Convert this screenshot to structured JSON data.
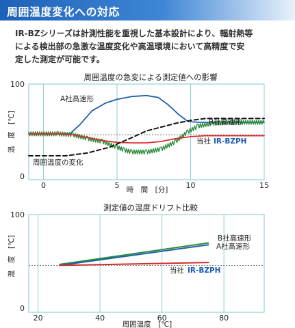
{
  "header": {
    "title": "周囲温度変化への対応"
  },
  "intro": {
    "lines": [
      "IR-BZシリーズは計測性能を重視した基本設計により、輻射熱等",
      "による検出部の急激な温度変化や高温環境において高精度で安",
      "定した測定が可能です。"
    ]
  },
  "colors": {
    "blue": "#1f5fa8",
    "green": "#2c8a3e",
    "red": "#d62c2c",
    "black": "#111111",
    "grid": "#8ccfd6",
    "header": "#1d62b8"
  },
  "chart_data": [
    {
      "type": "line",
      "title": "周囲温度の急変による測定値への影響",
      "xlabel": "時　間　[分]",
      "ylabel": "温　度　[℃]",
      "xlim": [
        -1,
        15
      ],
      "ylim": [
        0,
        100
      ],
      "xticks": [
        "0",
        "5",
        "10",
        "15"
      ],
      "yticks": [
        "0",
        "100"
      ],
      "series": [
        {
          "name": "A社高速形",
          "color": "#1f5fa8",
          "style": "solid",
          "points": [
            [
              -1,
              48
            ],
            [
              1,
              48
            ],
            [
              1.8,
              48
            ],
            [
              2.5,
              58
            ],
            [
              3.3,
              72
            ],
            [
              4.2,
              80
            ],
            [
              5,
              84
            ],
            [
              6,
              87
            ],
            [
              7,
              88
            ],
            [
              7.8,
              86
            ],
            [
              8.5,
              78
            ],
            [
              9.2,
              68
            ],
            [
              9.8,
              61
            ],
            [
              10.5,
              60
            ],
            [
              11.5,
              60
            ],
            [
              13,
              60
            ],
            [
              15,
              60
            ]
          ]
        },
        {
          "name": "B社高速形",
          "color": "#2c8a3e",
          "style": "noisy",
          "points": [
            [
              -1,
              48
            ],
            [
              1,
              48
            ],
            [
              2,
              47
            ],
            [
              3,
              43
            ],
            [
              4,
              40
            ],
            [
              5,
              34
            ],
            [
              5.5,
              31
            ],
            [
              6,
              29
            ],
            [
              7,
              29
            ],
            [
              8,
              32
            ],
            [
              9,
              40
            ],
            [
              9.8,
              50
            ],
            [
              10.5,
              56
            ],
            [
              11.5,
              59
            ],
            [
              13,
              60
            ],
            [
              15,
              60
            ]
          ]
        },
        {
          "name": "当社 IR-BZPH",
          "color": "#d62c2c",
          "style": "solid",
          "points": [
            [
              -1,
              48
            ],
            [
              1,
              48
            ],
            [
              2,
              47
            ],
            [
              3,
              44
            ],
            [
              4,
              41
            ],
            [
              5,
              39
            ],
            [
              6,
              38.5
            ],
            [
              7,
              38.5
            ],
            [
              8,
              40
            ],
            [
              9,
              43
            ],
            [
              10,
              45
            ],
            [
              11,
              46
            ],
            [
              13,
              46
            ],
            [
              15,
              46
            ]
          ]
        },
        {
          "name": "周囲温度の変化",
          "color": "#111111",
          "style": "dashed",
          "points": [
            [
              -1,
              25
            ],
            [
              1.5,
              25
            ],
            [
              3,
              28
            ],
            [
              4.5,
              34
            ],
            [
              6,
              44
            ],
            [
              7,
              51
            ],
            [
              8,
              55
            ],
            [
              9,
              59
            ],
            [
              10,
              62
            ],
            [
              11,
              64
            ],
            [
              12,
              64
            ],
            [
              15,
              64
            ]
          ]
        }
      ],
      "reference_level": 47,
      "labels": {
        "a": "A社高速形",
        "b": "B社高速形",
        "ours_prefix": "当社",
        "ours_model": "IR-BZPH",
        "ambient": "周囲温度の変化"
      }
    },
    {
      "type": "line",
      "title": "測定値の温度ドリフト比較",
      "xlabel": "周囲温度　[℃]",
      "ylabel": "温　度　[℃]",
      "xlim": [
        17,
        93
      ],
      "ylim": [
        0,
        100
      ],
      "xticks": [
        "20",
        "40",
        "60",
        "80"
      ],
      "yticks": [
        "0",
        "100"
      ],
      "series": [
        {
          "name": "B社高速形",
          "color": "#2c8a3e",
          "points": [
            [
              27,
              49
            ],
            [
              75,
              71
            ]
          ]
        },
        {
          "name": "A社高速形",
          "color": "#1f5fa8",
          "points": [
            [
              27,
              48
            ],
            [
              75,
              69
            ]
          ]
        },
        {
          "name": "当社 IR-BZPH",
          "color": "#d62c2c",
          "points": [
            [
              27,
              48
            ],
            [
              75,
              51
            ]
          ]
        }
      ],
      "reference_level": 48,
      "labels": {
        "b": "B社高速形",
        "a": "A社高速形",
        "ours_prefix": "当社",
        "ours_model": "IR-BZPH"
      }
    }
  ]
}
